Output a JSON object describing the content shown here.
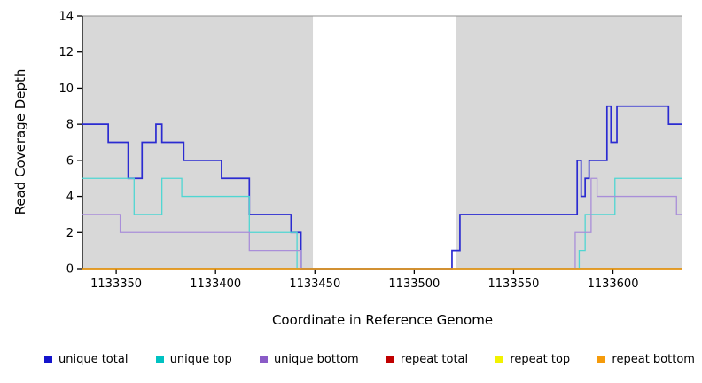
{
  "chart_data": {
    "type": "line",
    "style": "step-after",
    "title": "",
    "xlabel": "Coordinate in Reference Genome",
    "ylabel": "Read Coverage Depth",
    "xlim": [
      1133333,
      1133635
    ],
    "ylim": [
      0,
      14
    ],
    "xticks": [
      1133350,
      1133400,
      1133450,
      1133500,
      1133550,
      1133600
    ],
    "yticks": [
      0,
      2,
      4,
      6,
      8,
      10,
      12,
      14
    ],
    "grid": false,
    "legend_position": "bottom",
    "plot_background": {
      "gap_color": "#ffffff",
      "top_border_color": "#8f8f8f",
      "regions": [
        {
          "x0": 1133333,
          "x1": 1133449,
          "color": "#d8d8d8"
        },
        {
          "x0": 1133521,
          "x1": 1133635,
          "color": "#d8d8d8"
        }
      ]
    },
    "series": [
      {
        "name": "unique total",
        "color": "#2b2bd1",
        "legend_color": "#1414cc",
        "width": 1.7,
        "points": [
          [
            1133333,
            8
          ],
          [
            1133346,
            7
          ],
          [
            1133356,
            5
          ],
          [
            1133363,
            7
          ],
          [
            1133370,
            8
          ],
          [
            1133373,
            7
          ],
          [
            1133384,
            6
          ],
          [
            1133403,
            5
          ],
          [
            1133417,
            3
          ],
          [
            1133438,
            2
          ],
          [
            1133443,
            0
          ],
          [
            1133519,
            1
          ],
          [
            1133523,
            3
          ],
          [
            1133582,
            6
          ],
          [
            1133584,
            4
          ],
          [
            1133586,
            5
          ],
          [
            1133588,
            6
          ],
          [
            1133597,
            9
          ],
          [
            1133599,
            7
          ],
          [
            1133602,
            9
          ],
          [
            1133628,
            8
          ]
        ]
      },
      {
        "name": "unique top",
        "color": "#4fd6d2",
        "legend_color": "#00c2c2",
        "width": 1.3,
        "points": [
          [
            1133333,
            5
          ],
          [
            1133359,
            3
          ],
          [
            1133373,
            5
          ],
          [
            1133383,
            4
          ],
          [
            1133417,
            2
          ],
          [
            1133441,
            0
          ],
          [
            1133583,
            1
          ],
          [
            1133586,
            3
          ],
          [
            1133601,
            5
          ]
        ]
      },
      {
        "name": "unique bottom",
        "color": "#a98ed9",
        "legend_color": "#8a5bc7",
        "width": 1.3,
        "points": [
          [
            1133333,
            3
          ],
          [
            1133352,
            2
          ],
          [
            1133417,
            1
          ],
          [
            1133443,
            0
          ],
          [
            1133581,
            2
          ],
          [
            1133589,
            5
          ],
          [
            1133592,
            4
          ],
          [
            1133632,
            3
          ]
        ]
      },
      {
        "name": "repeat total",
        "color": "#c00000",
        "legend_color": "#c00000",
        "width": 1.3,
        "points": [
          [
            1133333,
            0
          ]
        ]
      },
      {
        "name": "repeat top",
        "color": "#f2f200",
        "legend_color": "#f2f200",
        "width": 1.3,
        "points": [
          [
            1133333,
            0
          ]
        ]
      },
      {
        "name": "repeat bottom",
        "color": "#f59b0b",
        "legend_color": "#f59b0b",
        "width": 1.3,
        "points": [
          [
            1133333,
            0
          ]
        ]
      }
    ]
  }
}
